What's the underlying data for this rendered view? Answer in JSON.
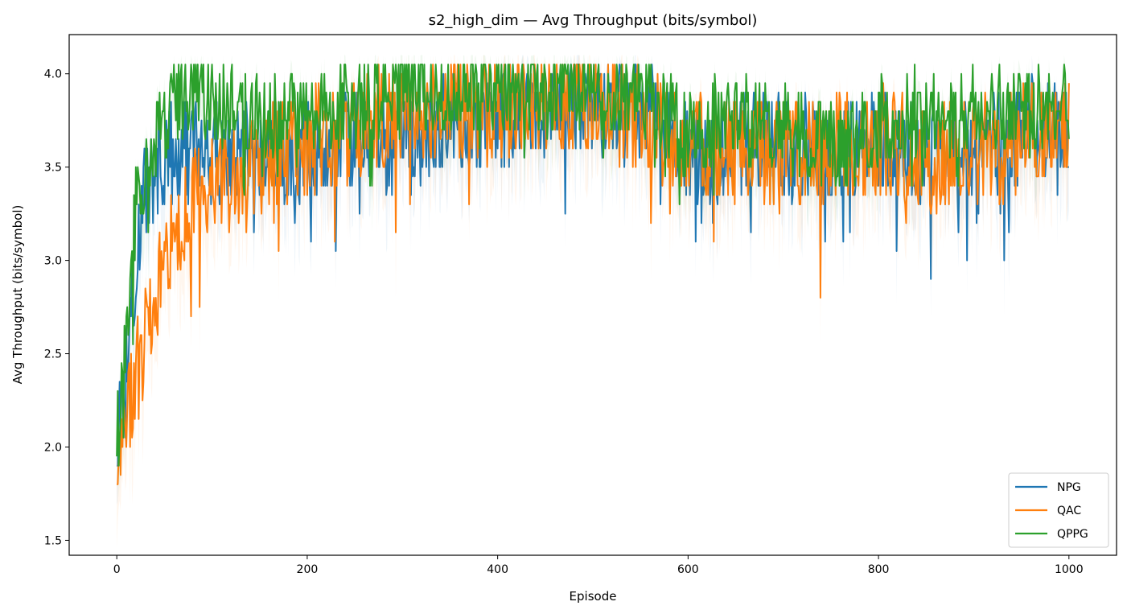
{
  "chart_data": {
    "type": "line",
    "title": "s2_high_dim — Avg Throughput (bits/symbol)",
    "xlabel": "Episode",
    "ylabel": "Avg Throughput (bits/symbol)",
    "xlim": [
      -50,
      1050
    ],
    "ylim": [
      1.42,
      4.21
    ],
    "xticks": [
      0,
      200,
      400,
      600,
      800,
      1000
    ],
    "xtick_labels": [
      "0",
      "200",
      "400",
      "600",
      "800",
      "1000"
    ],
    "yticks": [
      1.5,
      2.0,
      2.5,
      3.0,
      3.5,
      4.0
    ],
    "ytick_labels": [
      "1.5",
      "2.0",
      "2.5",
      "3.0",
      "3.5",
      "4.0"
    ],
    "grid": false,
    "legend_position": "bottom-right",
    "series": [
      {
        "name": "NPG",
        "color": "#1f77b4",
        "trend": [
          [
            0,
            2.05
          ],
          [
            10,
            2.5
          ],
          [
            20,
            3.0
          ],
          [
            30,
            3.35
          ],
          [
            50,
            3.55
          ],
          [
            80,
            3.6
          ],
          [
            120,
            3.55
          ],
          [
            200,
            3.6
          ],
          [
            260,
            3.65
          ],
          [
            300,
            3.6
          ],
          [
            360,
            3.75
          ],
          [
            420,
            3.8
          ],
          [
            500,
            3.85
          ],
          [
            560,
            3.8
          ],
          [
            600,
            3.55
          ],
          [
            620,
            3.5
          ],
          [
            660,
            3.65
          ],
          [
            700,
            3.6
          ],
          [
            760,
            3.6
          ],
          [
            800,
            3.65
          ],
          [
            860,
            3.55
          ],
          [
            900,
            3.6
          ],
          [
            960,
            3.7
          ],
          [
            1000,
            3.7
          ]
        ],
        "amplitude": 0.28
      },
      {
        "name": "QAC",
        "color": "#ff7f0e",
        "trend": [
          [
            0,
            1.85
          ],
          [
            10,
            2.1
          ],
          [
            20,
            2.35
          ],
          [
            40,
            2.8
          ],
          [
            60,
            3.15
          ],
          [
            80,
            3.35
          ],
          [
            120,
            3.4
          ],
          [
            160,
            3.55
          ],
          [
            200,
            3.65
          ],
          [
            260,
            3.75
          ],
          [
            320,
            3.85
          ],
          [
            400,
            3.85
          ],
          [
            460,
            3.9
          ],
          [
            500,
            3.85
          ],
          [
            560,
            3.75
          ],
          [
            600,
            3.6
          ],
          [
            640,
            3.6
          ],
          [
            700,
            3.55
          ],
          [
            760,
            3.6
          ],
          [
            800,
            3.65
          ],
          [
            860,
            3.55
          ],
          [
            920,
            3.6
          ],
          [
            960,
            3.7
          ],
          [
            1000,
            3.75
          ]
        ],
        "amplitude": 0.3
      },
      {
        "name": "QPPG",
        "color": "#2ca02c",
        "trend": [
          [
            0,
            2.0
          ],
          [
            10,
            2.6
          ],
          [
            20,
            3.25
          ],
          [
            40,
            3.65
          ],
          [
            60,
            3.85
          ],
          [
            80,
            3.9
          ],
          [
            120,
            3.8
          ],
          [
            200,
            3.75
          ],
          [
            260,
            3.85
          ],
          [
            320,
            3.95
          ],
          [
            400,
            3.95
          ],
          [
            480,
            3.95
          ],
          [
            560,
            3.9
          ],
          [
            600,
            3.65
          ],
          [
            640,
            3.8
          ],
          [
            700,
            3.7
          ],
          [
            760,
            3.6
          ],
          [
            800,
            3.75
          ],
          [
            860,
            3.8
          ],
          [
            920,
            3.8
          ],
          [
            960,
            3.8
          ],
          [
            1000,
            3.8
          ]
        ],
        "amplitude": 0.25
      }
    ],
    "x_range": [
      0,
      1000
    ],
    "cap": 4.05,
    "floor": 1.8
  }
}
